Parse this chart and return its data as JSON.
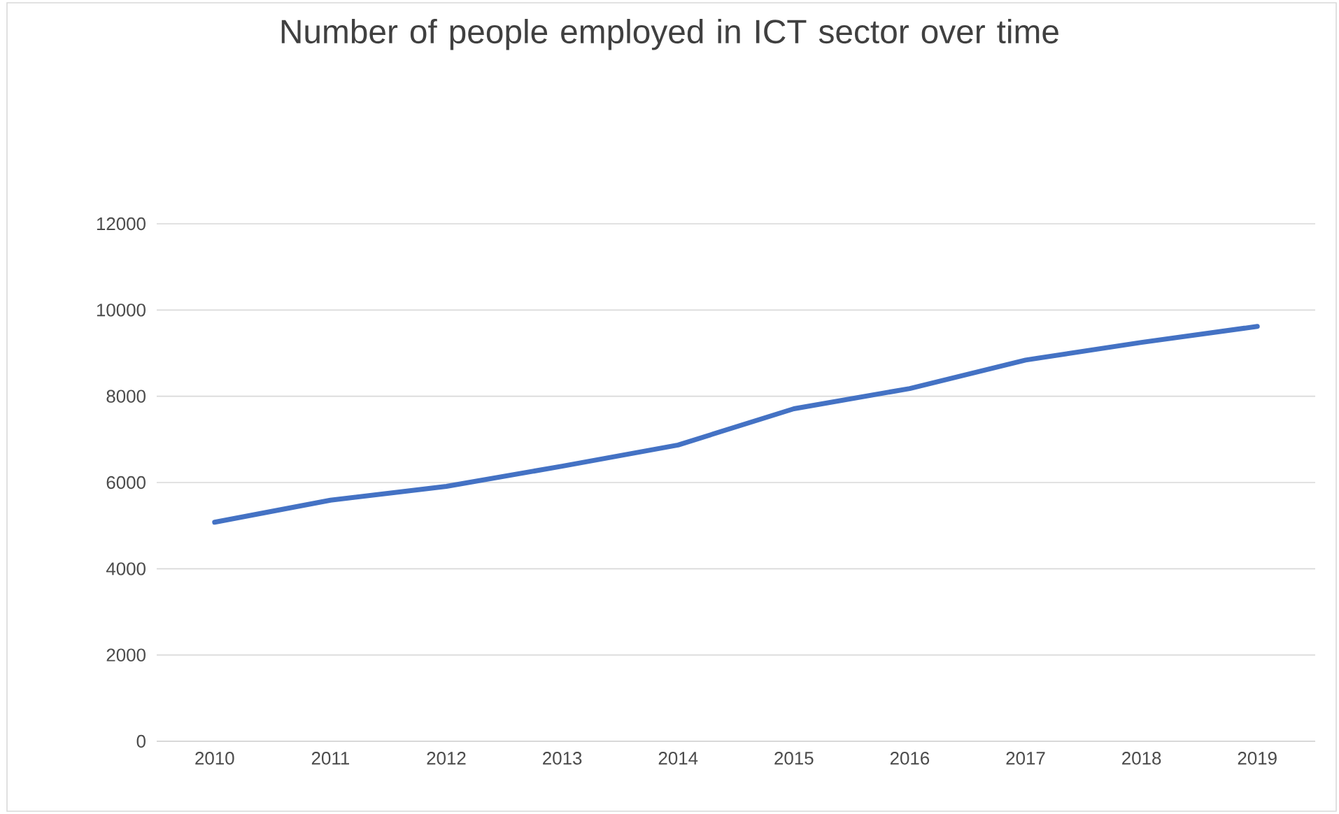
{
  "chart_data": {
    "type": "line",
    "title": "Number of people employed in ICT sector over time",
    "categories": [
      "2010",
      "2011",
      "2012",
      "2013",
      "2014",
      "2015",
      "2016",
      "2017",
      "2018",
      "2019"
    ],
    "series": [
      {
        "color": "#4472c4",
        "values": [
          5080,
          5590,
          5910,
          6380,
          6870,
          7710,
          8180,
          8840,
          9250,
          9620
        ]
      }
    ],
    "ylim": [
      0,
      12000
    ],
    "yticks": [
      0,
      2000,
      4000,
      6000,
      8000,
      10000,
      12000
    ],
    "grid": "y",
    "legend": false,
    "marker": "none",
    "line_style": "solid"
  }
}
